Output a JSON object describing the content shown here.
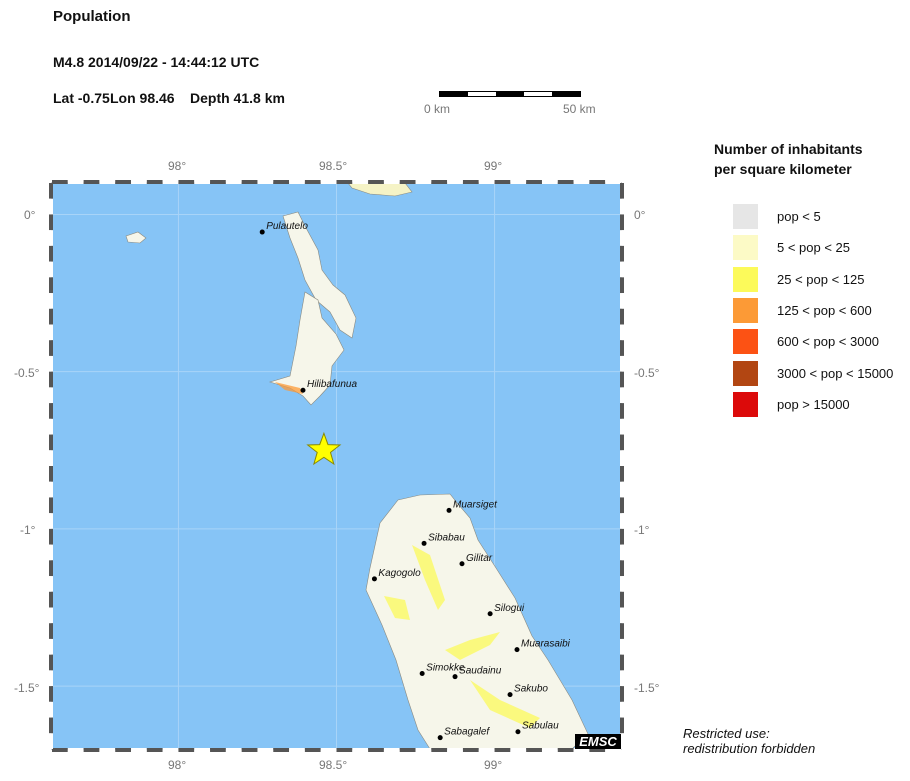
{
  "header": {
    "title": "Population",
    "event": "M4.8  2014/09/22 - 14:44:12 UTC",
    "lat_label": "Lat -0.75",
    "lon_label": "Lon  98.46",
    "depth_label": "Depth  41.8 km"
  },
  "scale_bar": {
    "start_label": "0 km",
    "end_label": "50 km"
  },
  "map": {
    "lon_range": [
      97.6,
      99.4
    ],
    "lat_range": [
      -1.7,
      0.1
    ],
    "ocean_color": "#86c4f6",
    "land_color": "#f6f6ea",
    "lon_ticks": [
      "98°",
      "98.5°",
      "99°"
    ],
    "lat_ticks": [
      "0°",
      "-0.5°",
      "-1°",
      "-1.5°"
    ],
    "epicenter": {
      "lat": -0.75,
      "lon": 98.46,
      "icon": "star-icon",
      "color": "#ffff00"
    },
    "cities": [
      {
        "name": "Pulautelo",
        "lat": -0.056,
        "lon": 98.265
      },
      {
        "name": "Hilibafunua",
        "lat": -0.559,
        "lon": 98.394
      },
      {
        "name": "Muarsiget",
        "lat": -0.941,
        "lon": 98.856
      },
      {
        "name": "Sibabau",
        "lat": -1.046,
        "lon": 98.777
      },
      {
        "name": "Gilitar",
        "lat": -1.111,
        "lon": 98.897
      },
      {
        "name": "Kagogolo",
        "lat": -1.159,
        "lon": 98.62
      },
      {
        "name": "Silogui",
        "lat": -1.27,
        "lon": 98.986
      },
      {
        "name": "Muarasaibi",
        "lat": -1.384,
        "lon": 99.071
      },
      {
        "name": "Simokke",
        "lat": -1.46,
        "lon": 98.771
      },
      {
        "name": "Saudainu",
        "lat": -1.47,
        "lon": 98.875
      },
      {
        "name": "Sakubo",
        "lat": -1.527,
        "lon": 99.049
      },
      {
        "name": "Sabulau",
        "lat": -1.645,
        "lon": 99.074
      },
      {
        "name": "Sabagalef",
        "lat": -1.664,
        "lon": 98.828
      }
    ]
  },
  "legend": {
    "title_line1": "Number of inhabitants",
    "title_line2": "per square kilometer",
    "items": [
      {
        "label": "pop < 5",
        "color": "#e6e6e6"
      },
      {
        "label": "5 < pop < 25",
        "color": "#fcfac6"
      },
      {
        "label": "25 < pop < 125",
        "color": "#fcfa5a"
      },
      {
        "label": "125 < pop < 600",
        "color": "#fc9a36"
      },
      {
        "label": "600 < pop < 3000",
        "color": "#fc5214"
      },
      {
        "label": "3000 < pop < 15000",
        "color": "#b24612"
      },
      {
        "label": "pop > 15000",
        "color": "#dc0a0a"
      }
    ]
  },
  "footer": {
    "note_line1": "Restricted use:",
    "note_line2": "redistribution forbidden",
    "logo": "EMSC"
  }
}
